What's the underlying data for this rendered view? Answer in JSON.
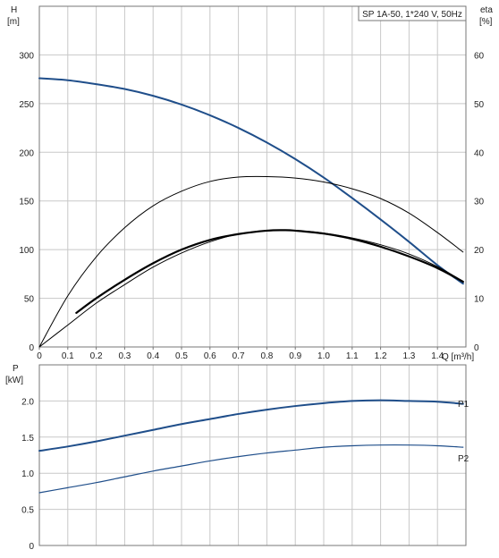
{
  "chart_data": [
    {
      "type": "line",
      "title": "SP 1A-50, 1*240 V, 50Hz",
      "xlabel": "Q [m³/h]",
      "ylabel_left_name": "H",
      "ylabel_left_unit": "[m]",
      "ylabel_right_name": "eta",
      "ylabel_right_unit": "[%]",
      "xlim": [
        0,
        1.5
      ],
      "ylim_left": [
        0,
        350
      ],
      "ylim_right": [
        0,
        70
      ],
      "x_ticks": [
        "0",
        "0.1",
        "0.2",
        "0.3",
        "0.4",
        "0.5",
        "0.6",
        "0.7",
        "0.8",
        "0.9",
        "1.0",
        "1.1",
        "1.2",
        "1.3",
        "1.4"
      ],
      "y_ticks_left": [
        "0",
        "50",
        "100",
        "150",
        "200",
        "250",
        "300"
      ],
      "y_ticks_right": [
        "0",
        "10",
        "20",
        "30",
        "40",
        "50",
        "60"
      ],
      "grid": true,
      "series": [
        {
          "color": "#1f4e8a",
          "axis": "left",
          "x": [
            0,
            0.1,
            0.2,
            0.3,
            0.4,
            0.5,
            0.6,
            0.7,
            0.8,
            0.9,
            1.0,
            1.1,
            1.2,
            1.3,
            1.4,
            1.49
          ],
          "y": [
            276,
            274,
            270,
            265,
            258,
            249,
            238,
            225,
            210,
            193,
            174,
            153,
            131,
            108,
            84,
            65
          ]
        },
        {
          "color": "#000000",
          "axis": "right",
          "x": [
            0,
            0.1,
            0.2,
            0.3,
            0.4,
            0.5,
            0.6,
            0.7,
            0.8,
            0.9,
            1.0,
            1.1,
            1.2,
            1.3,
            1.4,
            1.49
          ],
          "y": [
            0,
            10.5,
            18.5,
            24.5,
            29,
            32,
            34,
            34.9,
            35,
            34.7,
            33.9,
            32.5,
            30.5,
            27.5,
            23.5,
            19.5
          ]
        },
        {
          "color": "#000000",
          "axis": "right",
          "x": [
            0,
            0.1,
            0.2,
            0.3,
            0.4,
            0.5,
            0.6,
            0.7,
            0.8,
            0.9,
            1.0,
            1.1,
            1.2,
            1.3,
            1.4,
            1.49
          ],
          "y": [
            0,
            4.5,
            9,
            12.8,
            16.4,
            19.3,
            21.6,
            23.2,
            23.9,
            23.9,
            23.4,
            22.4,
            21,
            19.1,
            16.5,
            13.5
          ]
        },
        {
          "color": "#000000",
          "axis": "left",
          "bold": true,
          "x": [
            0.13,
            0.2,
            0.3,
            0.4,
            0.5,
            0.6,
            0.7,
            0.8,
            0.86,
            0.9,
            1.0,
            1.1,
            1.2,
            1.3,
            1.4,
            1.49
          ],
          "y": [
            35,
            50,
            69,
            86,
            100,
            110,
            116,
            119.5,
            120,
            119.5,
            116.5,
            111,
            103,
            93,
            81,
            67
          ]
        }
      ]
    },
    {
      "type": "line",
      "xlabel": "",
      "ylabel_name": "P",
      "ylabel_unit": "[kW]",
      "xlim": [
        0,
        1.5
      ],
      "ylim": [
        0,
        2.5
      ],
      "y_ticks": [
        "0",
        "0.5",
        "1.0",
        "1.5",
        "2.0"
      ],
      "grid": true,
      "series": [
        {
          "name": "P1",
          "color": "#1f4e8a",
          "x": [
            0,
            0.1,
            0.2,
            0.3,
            0.4,
            0.5,
            0.6,
            0.7,
            0.8,
            0.9,
            1.0,
            1.1,
            1.2,
            1.3,
            1.4,
            1.49
          ],
          "y": [
            1.31,
            1.37,
            1.44,
            1.52,
            1.6,
            1.68,
            1.75,
            1.82,
            1.88,
            1.93,
            1.97,
            2.0,
            2.01,
            2.0,
            1.99,
            1.96
          ]
        },
        {
          "name": "P2",
          "color": "#1f4e8a",
          "x": [
            0,
            0.1,
            0.2,
            0.3,
            0.4,
            0.5,
            0.6,
            0.7,
            0.8,
            0.9,
            1.0,
            1.1,
            1.2,
            1.3,
            1.4,
            1.49
          ],
          "y": [
            0.73,
            0.8,
            0.87,
            0.95,
            1.03,
            1.1,
            1.17,
            1.23,
            1.28,
            1.32,
            1.36,
            1.38,
            1.39,
            1.39,
            1.38,
            1.36
          ]
        }
      ]
    }
  ]
}
